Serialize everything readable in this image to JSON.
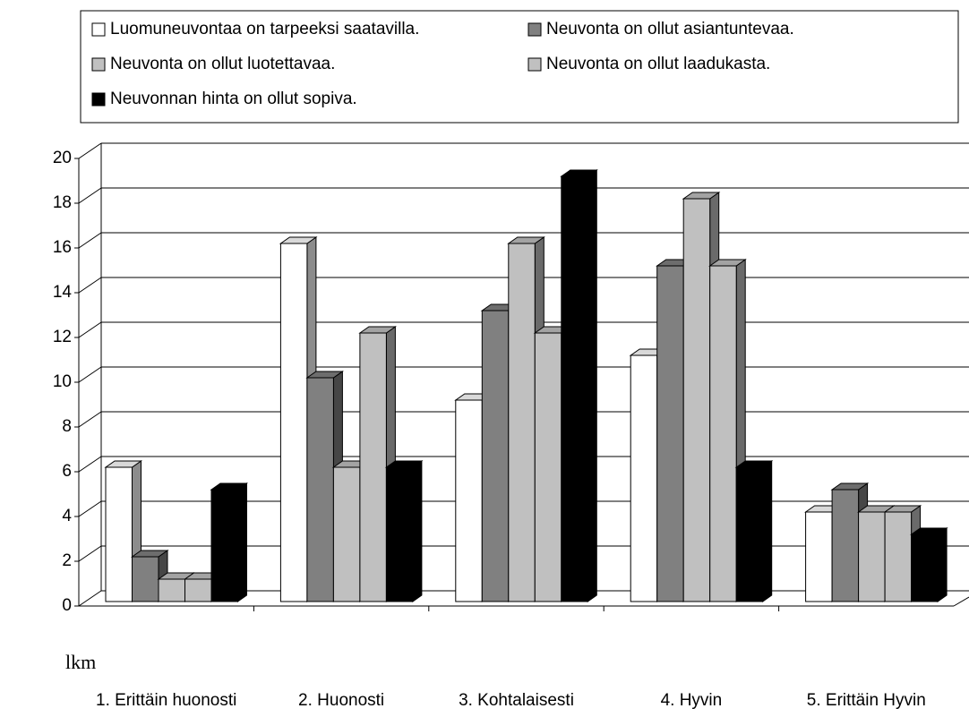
{
  "chart_data": {
    "type": "bar3d",
    "ylabel": "lkm",
    "categories": [
      "1. Erittäin huonosti",
      "2. Huonosti",
      "3. Kohtalaisesti",
      "4. Hyvin",
      "5. Erittäin Hyvin"
    ],
    "series": [
      {
        "name": "Luomuneuvontaa on tarpeeksi saatavilla.",
        "color": "#ffffff",
        "values": [
          6,
          16,
          9,
          11,
          4
        ]
      },
      {
        "name": "Neuvonta on ollut asiantuntevaa.",
        "color": "#808080",
        "values": [
          2,
          10,
          13,
          15,
          5
        ]
      },
      {
        "name": "Neuvonta on ollut luotettavaa.",
        "color": "#c0c0c0",
        "values": [
          1,
          6,
          16,
          18,
          4
        ]
      },
      {
        "name": "Neuvonta on ollut laadukasta.",
        "color": "#c0c0c0",
        "values": [
          1,
          12,
          12,
          15,
          4
        ]
      },
      {
        "name": "Neuvonnan hinta on ollut sopiva.",
        "color": "#000000",
        "values": [
          5,
          6,
          19,
          6,
          3
        ]
      }
    ],
    "ylim": [
      0,
      20
    ],
    "yticks": [
      0,
      2,
      4,
      6,
      8,
      10,
      12,
      14,
      16,
      18,
      20
    ],
    "grid": true
  }
}
